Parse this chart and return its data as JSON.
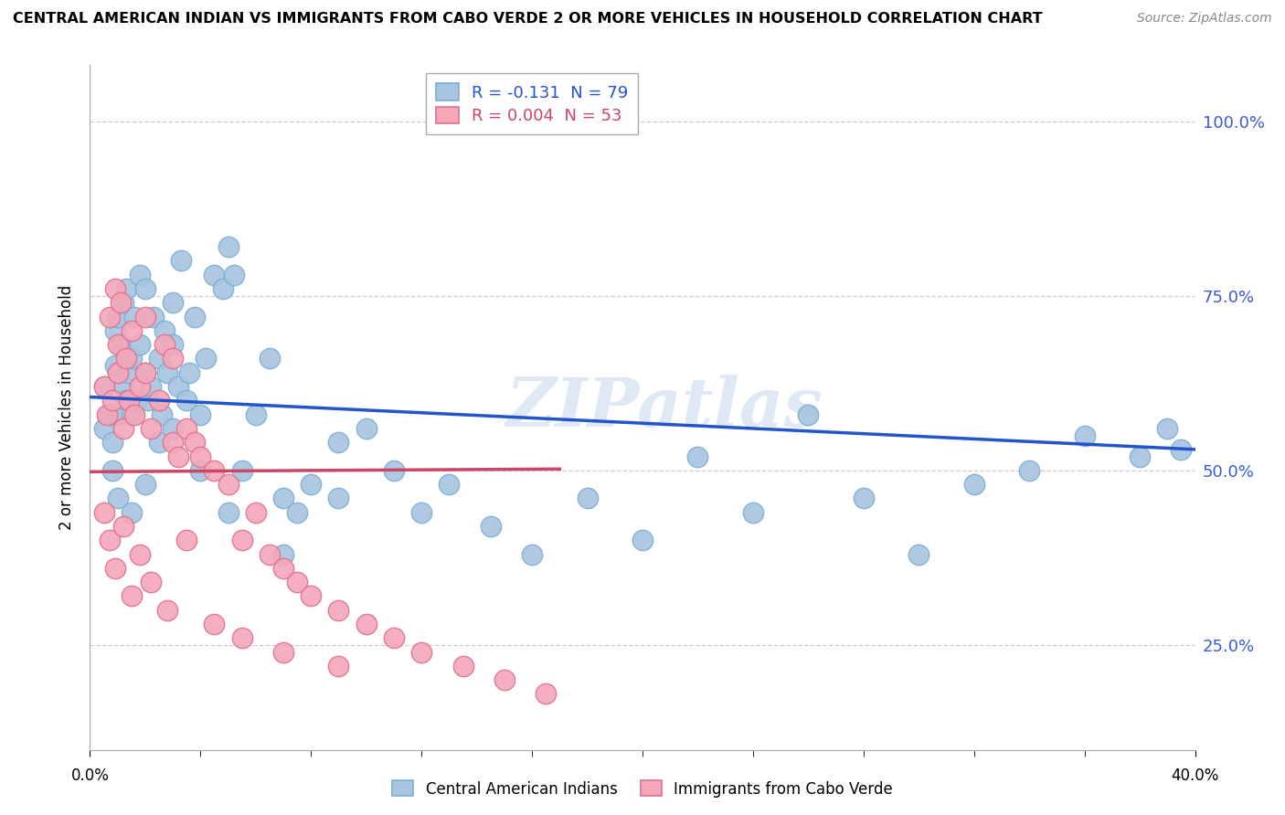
{
  "title": "CENTRAL AMERICAN INDIAN VS IMMIGRANTS FROM CABO VERDE 2 OR MORE VEHICLES IN HOUSEHOLD CORRELATION CHART",
  "source": "Source: ZipAtlas.com",
  "ylabel": "2 or more Vehicles in Household",
  "yticks_labels": [
    "25.0%",
    "50.0%",
    "75.0%",
    "100.0%"
  ],
  "ytick_vals": [
    0.25,
    0.5,
    0.75,
    1.0
  ],
  "xmin": 0.0,
  "xmax": 0.4,
  "ymin": 0.1,
  "ymax": 1.08,
  "legend_blue_r": "-0.131",
  "legend_blue_n": "79",
  "legend_pink_r": "0.004",
  "legend_pink_n": "53",
  "legend_blue_label": "Central American Indians",
  "legend_pink_label": "Immigrants from Cabo Verde",
  "blue_color": "#a8c4e0",
  "blue_edge_color": "#7aafd4",
  "pink_color": "#f4a7b9",
  "pink_edge_color": "#e07090",
  "blue_line_color": "#2255cc",
  "pink_line_color": "#cc4466",
  "watermark": "ZIPatlas",
  "blue_line_x0": 0.0,
  "blue_line_y0": 0.605,
  "blue_line_x1": 0.4,
  "blue_line_y1": 0.53,
  "pink_line_x0": 0.0,
  "pink_line_y0": 0.498,
  "pink_line_x1": 0.17,
  "pink_line_y1": 0.502,
  "blue_x": [
    0.005,
    0.005,
    0.007,
    0.008,
    0.008,
    0.009,
    0.009,
    0.01,
    0.01,
    0.01,
    0.011,
    0.012,
    0.012,
    0.013,
    0.013,
    0.014,
    0.015,
    0.015,
    0.016,
    0.017,
    0.018,
    0.018,
    0.02,
    0.02,
    0.021,
    0.022,
    0.023,
    0.025,
    0.026,
    0.027,
    0.028,
    0.03,
    0.03,
    0.032,
    0.033,
    0.035,
    0.036,
    0.038,
    0.04,
    0.042,
    0.045,
    0.048,
    0.05,
    0.052,
    0.055,
    0.06,
    0.065,
    0.07,
    0.075,
    0.08,
    0.09,
    0.1,
    0.11,
    0.12,
    0.13,
    0.145,
    0.16,
    0.18,
    0.2,
    0.22,
    0.24,
    0.26,
    0.28,
    0.3,
    0.32,
    0.34,
    0.36,
    0.38,
    0.39,
    0.395,
    0.01,
    0.015,
    0.02,
    0.025,
    0.03,
    0.04,
    0.05,
    0.07,
    0.09
  ],
  "blue_y": [
    0.56,
    0.62,
    0.58,
    0.54,
    0.5,
    0.65,
    0.7,
    0.64,
    0.58,
    0.72,
    0.68,
    0.62,
    0.74,
    0.6,
    0.76,
    0.64,
    0.58,
    0.66,
    0.72,
    0.6,
    0.78,
    0.68,
    0.64,
    0.76,
    0.6,
    0.62,
    0.72,
    0.66,
    0.58,
    0.7,
    0.64,
    0.68,
    0.74,
    0.62,
    0.8,
    0.6,
    0.64,
    0.72,
    0.58,
    0.66,
    0.78,
    0.76,
    0.82,
    0.78,
    0.5,
    0.58,
    0.66,
    0.46,
    0.44,
    0.48,
    0.54,
    0.56,
    0.5,
    0.44,
    0.48,
    0.42,
    0.38,
    0.46,
    0.4,
    0.52,
    0.44,
    0.58,
    0.46,
    0.38,
    0.48,
    0.5,
    0.55,
    0.52,
    0.56,
    0.53,
    0.46,
    0.44,
    0.48,
    0.54,
    0.56,
    0.5,
    0.44,
    0.38,
    0.46
  ],
  "pink_x": [
    0.005,
    0.006,
    0.007,
    0.008,
    0.009,
    0.01,
    0.01,
    0.011,
    0.012,
    0.013,
    0.014,
    0.015,
    0.016,
    0.018,
    0.02,
    0.02,
    0.022,
    0.025,
    0.027,
    0.03,
    0.03,
    0.032,
    0.035,
    0.038,
    0.04,
    0.045,
    0.05,
    0.055,
    0.06,
    0.065,
    0.07,
    0.075,
    0.08,
    0.09,
    0.1,
    0.11,
    0.12,
    0.135,
    0.15,
    0.165,
    0.005,
    0.007,
    0.009,
    0.012,
    0.015,
    0.018,
    0.022,
    0.028,
    0.035,
    0.045,
    0.055,
    0.07,
    0.09
  ],
  "pink_y": [
    0.62,
    0.58,
    0.72,
    0.6,
    0.76,
    0.68,
    0.64,
    0.74,
    0.56,
    0.66,
    0.6,
    0.7,
    0.58,
    0.62,
    0.64,
    0.72,
    0.56,
    0.6,
    0.68,
    0.54,
    0.66,
    0.52,
    0.56,
    0.54,
    0.52,
    0.5,
    0.48,
    0.4,
    0.44,
    0.38,
    0.36,
    0.34,
    0.32,
    0.3,
    0.28,
    0.26,
    0.24,
    0.22,
    0.2,
    0.18,
    0.44,
    0.4,
    0.36,
    0.42,
    0.32,
    0.38,
    0.34,
    0.3,
    0.4,
    0.28,
    0.26,
    0.24,
    0.22
  ]
}
